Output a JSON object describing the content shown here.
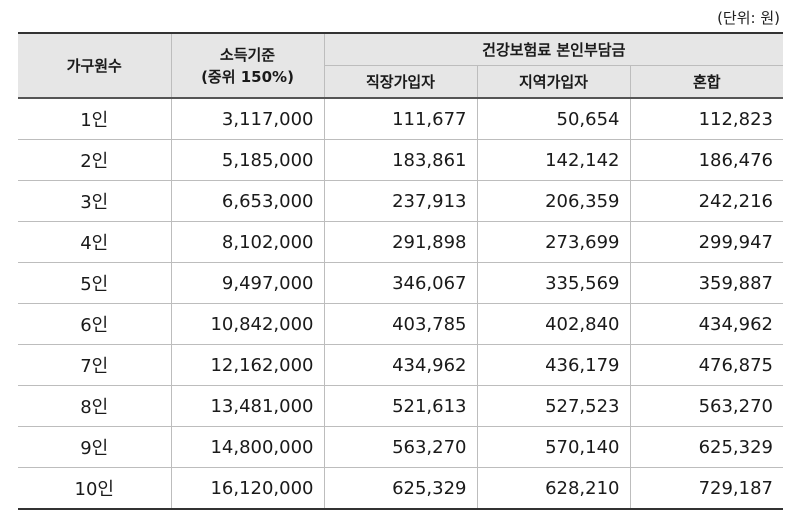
{
  "unit_label": "(단위: 원)",
  "headers": {
    "household": "가구원수",
    "income_line1": "소득기준",
    "income_line2": "(중위 150%)",
    "premium_group": "건강보험료 본인부담금",
    "employee": "직장가입자",
    "regional": "지역가입자",
    "mixed": "혼합"
  },
  "rows": [
    {
      "household": "1인",
      "income": "3,117,000",
      "employee": "111,677",
      "regional": "50,654",
      "mixed": "112,823"
    },
    {
      "household": "2인",
      "income": "5,185,000",
      "employee": "183,861",
      "regional": "142,142",
      "mixed": "186,476"
    },
    {
      "household": "3인",
      "income": "6,653,000",
      "employee": "237,913",
      "regional": "206,359",
      "mixed": "242,216"
    },
    {
      "household": "4인",
      "income": "8,102,000",
      "employee": "291,898",
      "regional": "273,699",
      "mixed": "299,947"
    },
    {
      "household": "5인",
      "income": "9,497,000",
      "employee": "346,067",
      "regional": "335,569",
      "mixed": "359,887"
    },
    {
      "household": "6인",
      "income": "10,842,000",
      "employee": "403,785",
      "regional": "402,840",
      "mixed": "434,962"
    },
    {
      "household": "7인",
      "income": "12,162,000",
      "employee": "434,962",
      "regional": "436,179",
      "mixed": "476,875"
    },
    {
      "household": "8인",
      "income": "13,481,000",
      "employee": "521,613",
      "regional": "527,523",
      "mixed": "563,270"
    },
    {
      "household": "9인",
      "income": "14,800,000",
      "employee": "563,270",
      "regional": "570,140",
      "mixed": "625,329"
    },
    {
      "household": "10인",
      "income": "16,120,000",
      "employee": "625,329",
      "regional": "628,210",
      "mixed": "729,187"
    }
  ]
}
